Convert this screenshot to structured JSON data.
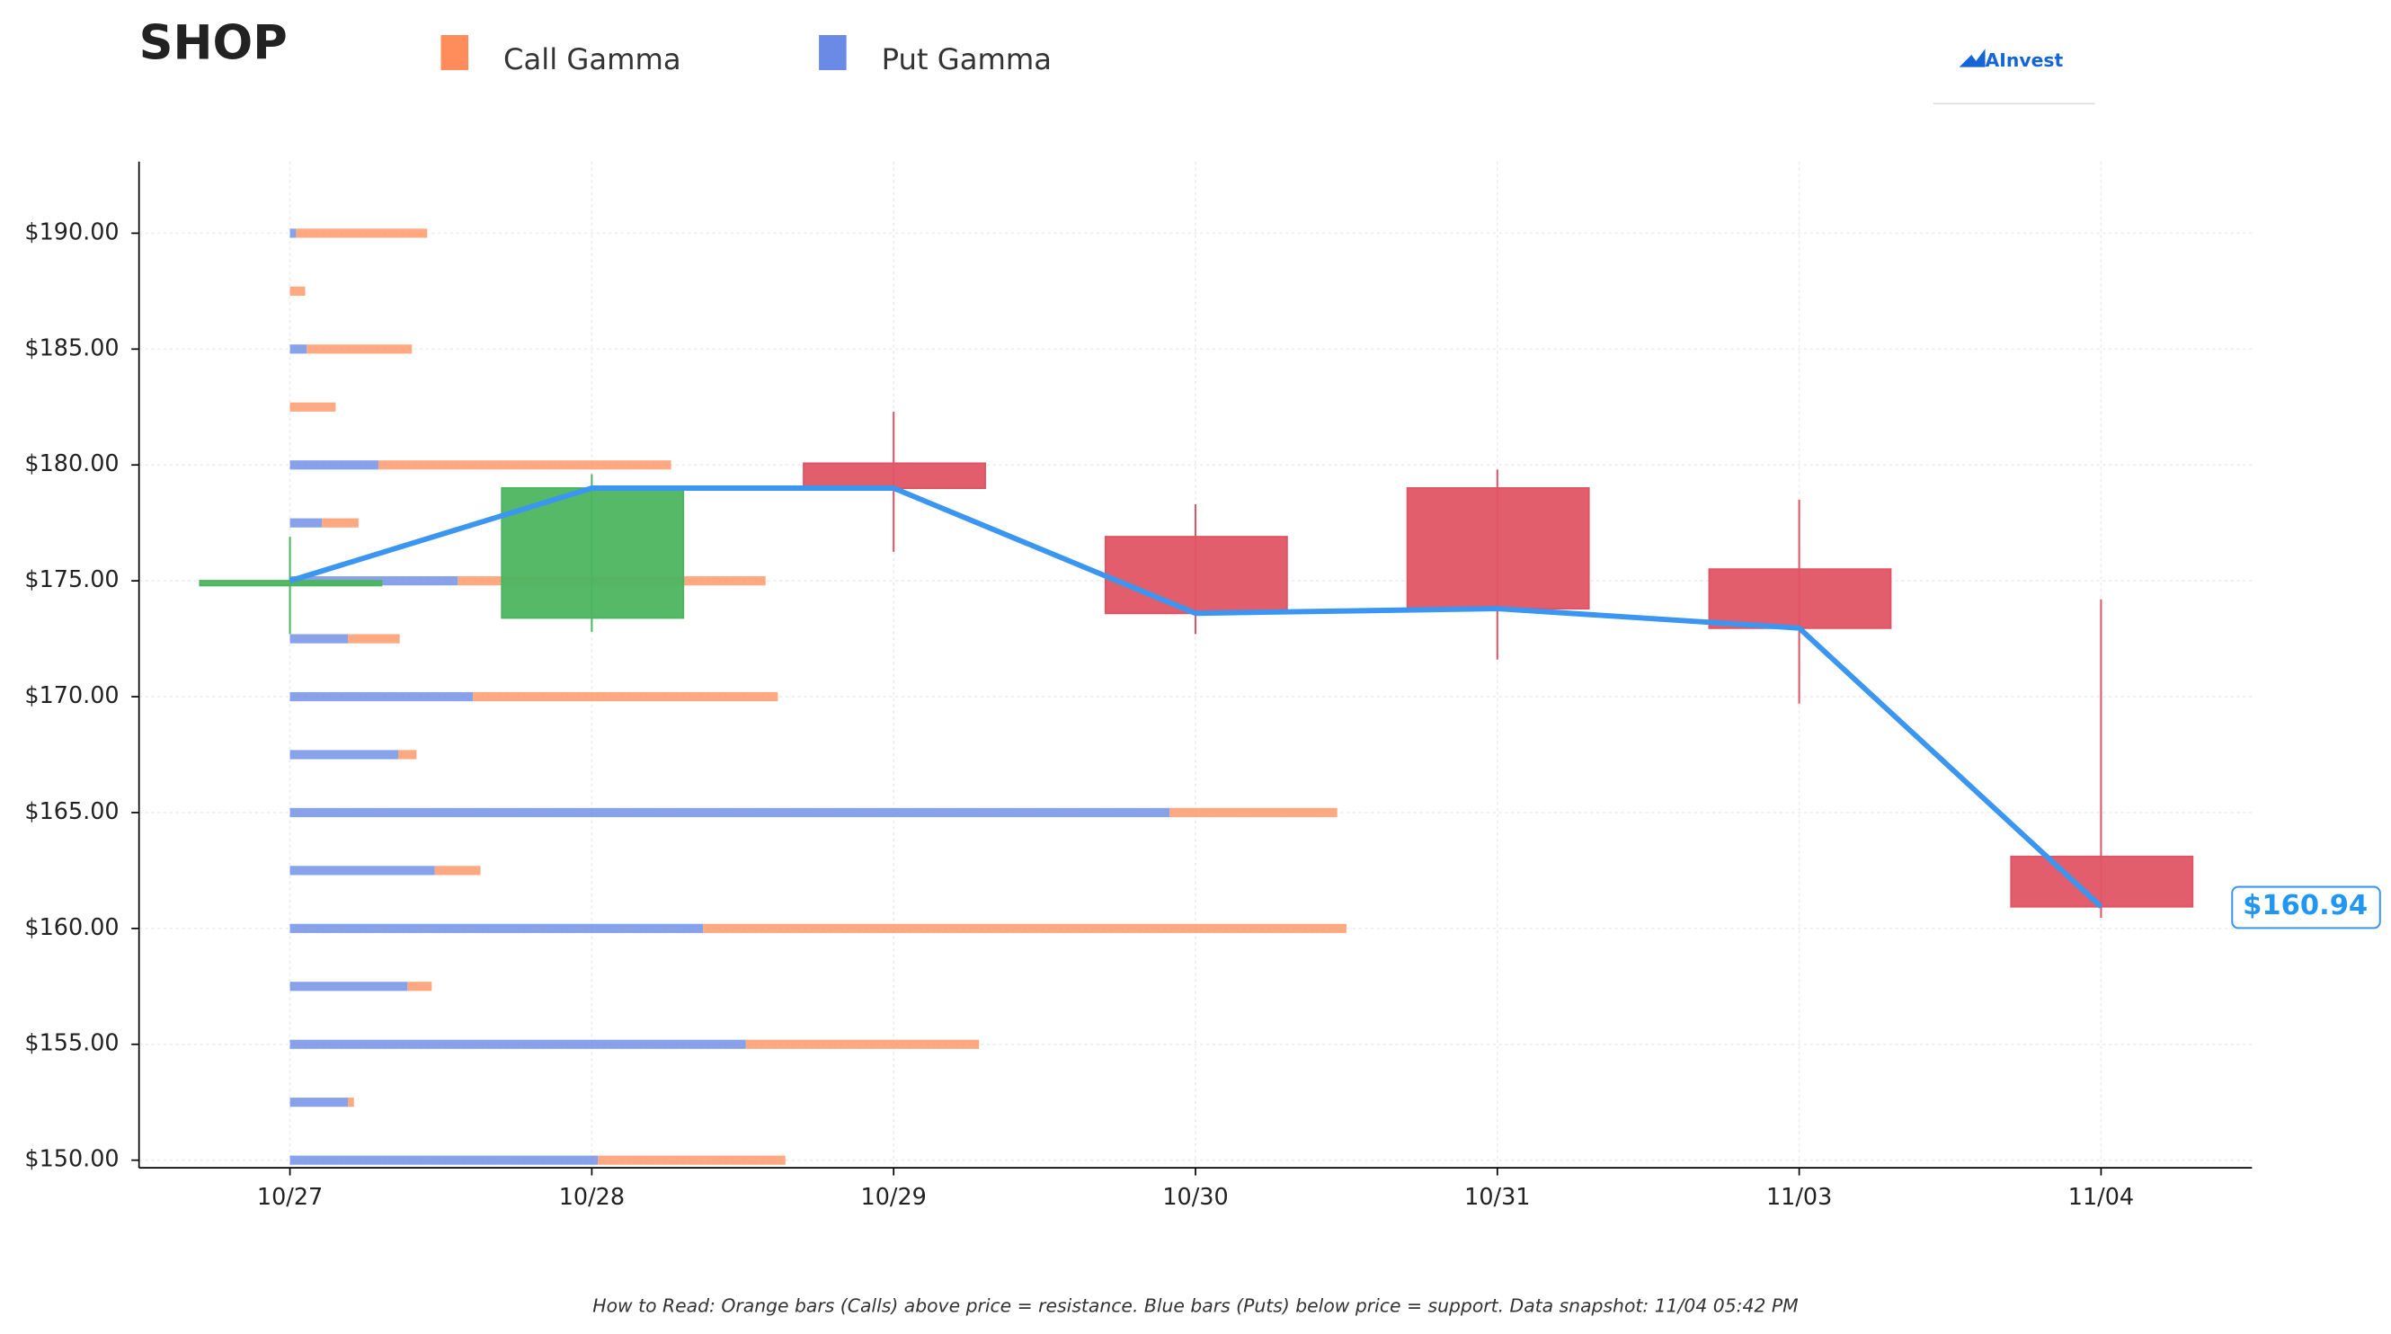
{
  "chart_data": {
    "type": "candlestick",
    "title": "SHOP",
    "categories": [
      "10/27",
      "10/28",
      "10/29",
      "10/30",
      "10/31",
      "11/03",
      "11/04"
    ],
    "open": [
      174.8,
      173.4,
      180.07,
      176.9,
      179.0,
      175.5,
      163.1
    ],
    "high": [
      176.9,
      179.6,
      182.3,
      178.3,
      179.8,
      178.5,
      174.2
    ],
    "low": [
      172.7,
      172.8,
      176.25,
      172.7,
      171.6,
      169.7,
      160.46
    ],
    "close": [
      175.0,
      179.0,
      179.0,
      173.6,
      173.8,
      172.96,
      160.94
    ],
    "up_color": "#4cb560",
    "down_color": "#e05565",
    "line_color": "#3a96f0",
    "ylim": [
      149.67,
      193.09
    ],
    "yticks": [
      {
        "value": 150,
        "label": "$150.00"
      },
      {
        "value": 155,
        "label": "$155.00"
      },
      {
        "value": 160,
        "label": "$160.00"
      },
      {
        "value": 165,
        "label": "$165.00"
      },
      {
        "value": 170,
        "label": "$170.00"
      },
      {
        "value": 175,
        "label": "$175.00"
      },
      {
        "value": 180,
        "label": "$180.00"
      },
      {
        "value": 185,
        "label": "$185.00"
      },
      {
        "value": 190,
        "label": "$190.00"
      }
    ],
    "grid": true,
    "last_price": {
      "value": 160.94,
      "label": "$160.94"
    },
    "gamma": {
      "strikes": [
        150,
        152.5,
        155,
        157.5,
        160,
        162.5,
        165,
        167.5,
        170,
        172.5,
        175,
        177.5,
        180,
        182.5,
        185,
        187.5,
        190
      ],
      "series": [
        {
          "name": "Call Gamma",
          "color": "#ff8c5a",
          "values": [
            123,
            4,
            153,
            16,
            422,
            30,
            110,
            12,
            200,
            34,
            202,
            24,
            192,
            30,
            69,
            10,
            86
          ]
        },
        {
          "name": "Put Gamma",
          "color": "#6a8ae6",
          "values": [
            202,
            38,
            299,
            77,
            271,
            95,
            577,
            71,
            120,
            38,
            110,
            21,
            58,
            0,
            11,
            0,
            4
          ]
        }
      ]
    },
    "logo": "AInvest",
    "note": "How to Read: Orange bars (Calls) above price = resistance. Blue bars (Puts) below price = support. Data snapshot: 11/04 05:42 PM"
  }
}
